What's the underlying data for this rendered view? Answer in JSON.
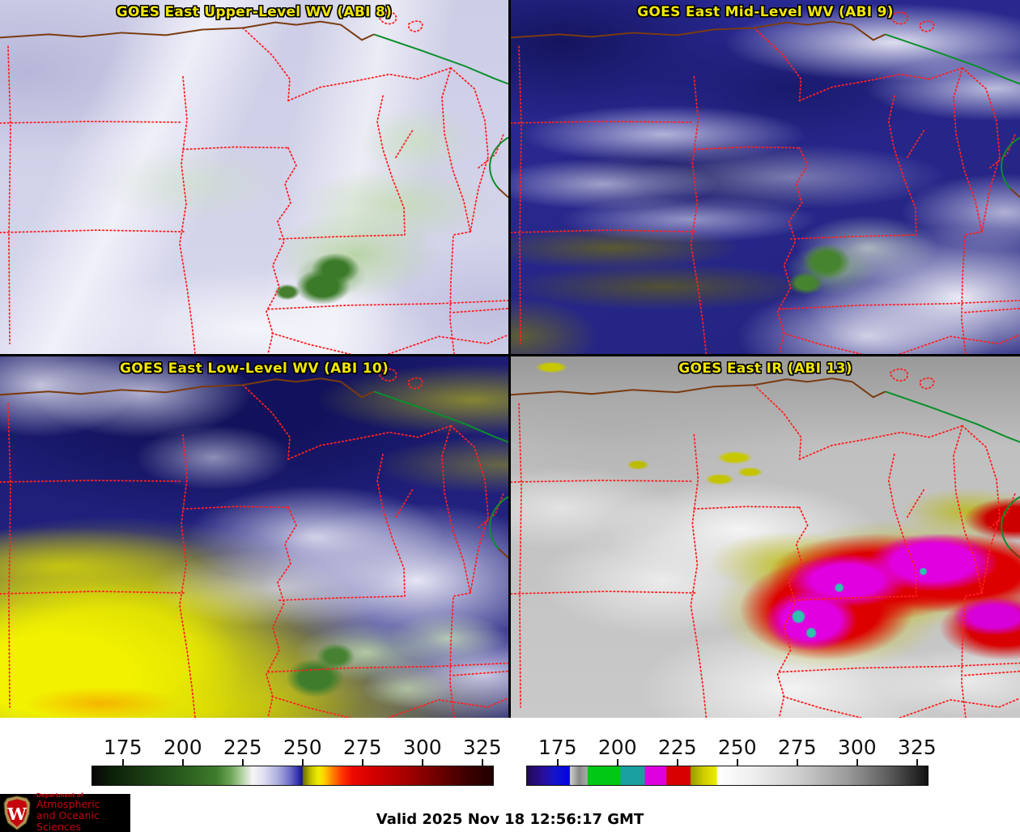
{
  "panels": [
    {
      "id": "abi8",
      "title": "GOES East Upper-Level WV (ABI 8)"
    },
    {
      "id": "abi9",
      "title": "GOES East Mid-Level WV (ABI 9)"
    },
    {
      "id": "abi10",
      "title": "GOES East Low-Level WV (ABI 10)"
    },
    {
      "id": "abi13",
      "title": "GOES East IR (ABI 13)"
    }
  ],
  "colorbars": {
    "ticks": [
      "175",
      "200",
      "225",
      "250",
      "275",
      "300",
      "325"
    ],
    "tick_start_pct": 7.8,
    "tick_step_pct": 14.89,
    "left": {
      "name": "water-vapor-temperature-scale",
      "stops": [
        {
          "p": 0,
          "c": "#060606"
        },
        {
          "p": 5,
          "c": "#0d2009"
        },
        {
          "p": 14,
          "c": "#1b3f14"
        },
        {
          "p": 24,
          "c": "#2c611f"
        },
        {
          "p": 31,
          "c": "#3f7d2c"
        },
        {
          "p": 34.5,
          "c": "#6ca455"
        },
        {
          "p": 37.5,
          "c": "#b5d4a7"
        },
        {
          "p": 40,
          "c": "#f5f5f5"
        },
        {
          "p": 43,
          "c": "#dcdcf0"
        },
        {
          "p": 46.5,
          "c": "#aaaade"
        },
        {
          "p": 49.5,
          "c": "#6a6ac4"
        },
        {
          "p": 51.5,
          "c": "#2e2ea6"
        },
        {
          "p": 52.4,
          "c": "#14148c"
        },
        {
          "p": 52.6,
          "c": "#6e6e00"
        },
        {
          "p": 54.5,
          "c": "#c0c000"
        },
        {
          "p": 56.5,
          "c": "#f0f000"
        },
        {
          "p": 58,
          "c": "#ffcc00"
        },
        {
          "p": 60,
          "c": "#ff8000"
        },
        {
          "p": 62.5,
          "c": "#ff3000"
        },
        {
          "p": 65,
          "c": "#ee0800"
        },
        {
          "p": 70,
          "c": "#d40000"
        },
        {
          "p": 78,
          "c": "#a80000"
        },
        {
          "p": 86,
          "c": "#700000"
        },
        {
          "p": 94,
          "c": "#3a0000"
        },
        {
          "p": 100,
          "c": "#200000"
        }
      ]
    },
    "right": {
      "name": "ir-temperature-scale",
      "stops": [
        {
          "p": 0,
          "c": "#200a52"
        },
        {
          "p": 4,
          "c": "#2a0e9a"
        },
        {
          "p": 7,
          "c": "#1414cc"
        },
        {
          "p": 10.6,
          "c": "#0202e6"
        },
        {
          "p": 10.8,
          "c": "#d0d0d0"
        },
        {
          "p": 13,
          "c": "#8a8a8a"
        },
        {
          "p": 15.0,
          "c": "#a8a8a8"
        },
        {
          "p": 15.2,
          "c": "#00c814"
        },
        {
          "p": 23.2,
          "c": "#00c814"
        },
        {
          "p": 23.4,
          "c": "#1aa0a0"
        },
        {
          "p": 29.3,
          "c": "#1aa0a0"
        },
        {
          "p": 29.5,
          "c": "#de00de"
        },
        {
          "p": 34.7,
          "c": "#de00de"
        },
        {
          "p": 34.9,
          "c": "#d80000"
        },
        {
          "p": 40.7,
          "c": "#d80000"
        },
        {
          "p": 40.9,
          "c": "#9a9a00"
        },
        {
          "p": 44,
          "c": "#cccc00"
        },
        {
          "p": 47.3,
          "c": "#ecec00"
        },
        {
          "p": 47.5,
          "c": "#ffffff"
        },
        {
          "p": 56,
          "c": "#efefef"
        },
        {
          "p": 68,
          "c": "#cdcdcd"
        },
        {
          "p": 80,
          "c": "#9a9a9a"
        },
        {
          "p": 90,
          "c": "#5e5e5e"
        },
        {
          "p": 100,
          "c": "#121212"
        }
      ]
    }
  },
  "footer": {
    "valid_label": "Valid 2025 Nov 18 12:56:17 GMT"
  },
  "logo": {
    "dept": "Department of",
    "line1": "Atmospheric",
    "line2": "and Oceanic Sciences",
    "crest_letter": "W",
    "crimson": "#c5050c"
  },
  "map_colors": {
    "state_border": "#ff2020",
    "intl_border_land": "#7a3b10",
    "intl_border_water": "#0a8f2a",
    "title_yellow": "#f0e600"
  }
}
